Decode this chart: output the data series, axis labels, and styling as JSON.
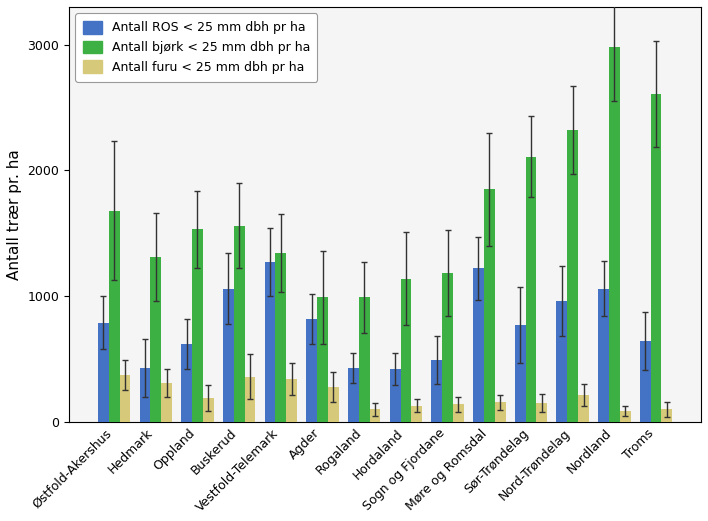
{
  "categories": [
    "Østfold-Akershus",
    "Hedmark",
    "Oppland",
    "Buskerud",
    "Vestfold-Telemark",
    "Agder",
    "Rogaland",
    "Hordaland",
    "Sogn og Fjordane",
    "Møre og Romsdal",
    "Sør-Trøndelag",
    "Nord-Trøndelag",
    "Nordland",
    "Troms"
  ],
  "blue_vals": [
    790,
    430,
    620,
    1060,
    1270,
    820,
    430,
    420,
    490,
    1220,
    770,
    960,
    1060,
    640
  ],
  "green_vals": [
    1680,
    1310,
    1530,
    1560,
    1340,
    990,
    990,
    1140,
    1185,
    1850,
    2110,
    2320,
    2980,
    2610
  ],
  "tan_vals": [
    370,
    310,
    190,
    360,
    340,
    280,
    100,
    130,
    140,
    155,
    150,
    215,
    90,
    100
  ],
  "blue_err": [
    210,
    230,
    200,
    280,
    270,
    200,
    120,
    130,
    190,
    250,
    300,
    280,
    220,
    230
  ],
  "green_err": [
    550,
    350,
    310,
    340,
    310,
    370,
    280,
    370,
    340,
    450,
    320,
    350,
    430,
    420
  ],
  "tan_err": [
    120,
    110,
    100,
    180,
    130,
    120,
    50,
    50,
    60,
    60,
    70,
    90,
    40,
    60
  ],
  "blue_color": "#4472c4",
  "green_color": "#3cb043",
  "tan_color": "#d6c97a",
  "ylabel": "Antall trær pr. ha",
  "ylim": [
    0,
    3300
  ],
  "yticks": [
    0,
    1000,
    2000,
    3000
  ],
  "legend_labels": [
    "Antall ROS < 25 mm dbh pr ha",
    "Antall bjørk < 25 mm dbh pr ha",
    "Antall furu < 25 mm dbh pr ha"
  ],
  "bar_width": 0.26,
  "fig_facecolor": "#ffffff",
  "axes_facecolor": "#f5f5f5",
  "spine_color": "#000000",
  "tick_labelsize": 9,
  "ylabel_fontsize": 11,
  "legend_fontsize": 9
}
